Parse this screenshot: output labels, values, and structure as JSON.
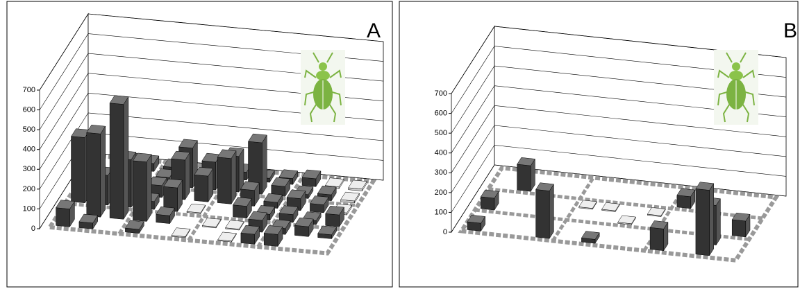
{
  "chart_data": [
    {
      "type": "bar3d",
      "title": "A",
      "ylim": [
        0,
        700
      ],
      "yticks": [
        0,
        100,
        200,
        300,
        400,
        500,
        600,
        700
      ],
      "grid": true,
      "values": [
        [
          90,
          30,
          null,
          20,
          null,
          5,
          null,
          5,
          50,
          60,
          null,
          null
        ],
        [
          null,
          420,
          580,
          300,
          40,
          null,
          5,
          5,
          60,
          30,
          50,
          20
        ],
        [
          330,
          150,
          240,
          40,
          120,
          5,
          null,
          60,
          30,
          40,
          20,
          60
        ],
        [
          null,
          80,
          170,
          60,
          200,
          130,
          230,
          80,
          30,
          60,
          40,
          10
        ],
        [
          null,
          50,
          100,
          40,
          200,
          140,
          180,
          260,
          50,
          20,
          30,
          10
        ],
        [
          null,
          null,
          40,
          30,
          null,
          60,
          40,
          20,
          30,
          40,
          10,
          10
        ]
      ]
    },
    {
      "type": "bar3d",
      "title": "B",
      "ylim": [
        0,
        700
      ],
      "yticks": [
        0,
        100,
        200,
        300,
        400,
        500,
        600,
        700
      ],
      "grid": true,
      "values": [
        [
          40,
          null,
          null,
          240,
          null,
          20,
          null,
          null,
          110,
          null,
          330,
          null
        ],
        [
          null,
          null,
          null,
          null,
          null,
          null,
          null,
          null,
          null,
          null,
          200,
          null
        ],
        [
          60,
          null,
          null,
          null,
          null,
          null,
          5,
          null,
          null,
          null,
          null,
          80
        ],
        [
          null,
          null,
          null,
          null,
          5,
          5,
          null,
          5,
          null,
          null,
          null,
          null
        ],
        [
          null,
          130,
          null,
          null,
          null,
          null,
          null,
          null,
          60,
          null,
          null,
          null
        ],
        [
          null,
          null,
          null,
          null,
          null,
          null,
          null,
          null,
          null,
          null,
          null,
          null
        ]
      ]
    }
  ]
}
